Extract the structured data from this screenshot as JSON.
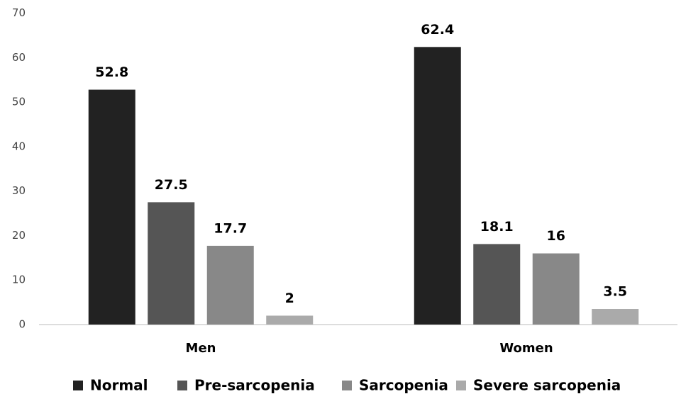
{
  "chart_data": {
    "type": "bar",
    "categories": [
      "Men",
      "Women"
    ],
    "series": [
      {
        "name": "Normal",
        "color": "#222222",
        "values": [
          52.8,
          62.4
        ]
      },
      {
        "name": "Pre-sarcopenia",
        "color": "#555555",
        "values": [
          27.5,
          18.1
        ]
      },
      {
        "name": "Sarcopenia",
        "color": "#888888",
        "values": [
          17.7,
          16
        ]
      },
      {
        "name": "Severe sarcopenia",
        "color": "#aaaaaa",
        "values": [
          2,
          3.5
        ]
      }
    ],
    "ylim": [
      0,
      70
    ],
    "yticks": [
      0,
      10,
      20,
      30,
      40,
      50,
      60,
      70
    ],
    "grid": false,
    "legend": "bottom"
  }
}
